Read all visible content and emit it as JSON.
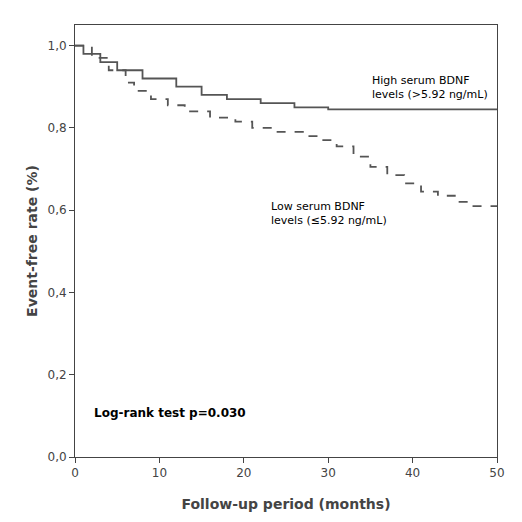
{
  "chart_data": {
    "type": "step",
    "title": "",
    "xlabel": "Follow-up period (months)",
    "ylabel": "Event-free rate (%)",
    "xlim": [
      0,
      50
    ],
    "ylim": [
      0.0,
      1.05
    ],
    "xticks": [
      0,
      10,
      20,
      30,
      40,
      50
    ],
    "yticks": [
      {
        "value": 0.0,
        "label": "0,0"
      },
      {
        "value": 0.2,
        "label": "0,2"
      },
      {
        "value": 0.4,
        "label": "0,4"
      },
      {
        "value": 0.6,
        "label": "0,6"
      },
      {
        "value": 0.8,
        "label": "0,8"
      },
      {
        "value": 1.0,
        "label": "1,0"
      }
    ],
    "grid": false,
    "background_color": "#ffffff",
    "annotations": [
      {
        "text": "Log-rank test p=0.030"
      },
      {
        "text": "High serum BDNF\nlevels (>5.92 ng/mL)"
      },
      {
        "text": "Low serum BDNF\nlevels (≤5.92 ng/mL)"
      }
    ],
    "series": [
      {
        "color": "#555555",
        "line_style": "solid",
        "x": [
          0,
          1,
          3,
          5,
          8,
          12,
          15,
          18,
          22,
          26,
          30,
          50
        ],
        "values": [
          1.0,
          0.98,
          0.96,
          0.94,
          0.92,
          0.9,
          0.88,
          0.87,
          0.86,
          0.85,
          0.845,
          0.845
        ]
      },
      {
        "color": "#555555",
        "line_style": "dashed",
        "x": [
          0,
          2,
          4,
          6,
          7,
          9,
          11,
          13,
          16,
          19,
          21,
          24,
          27,
          29,
          31,
          33,
          35,
          37,
          39,
          41,
          43,
          45,
          47,
          50
        ],
        "values": [
          1.0,
          0.97,
          0.94,
          0.91,
          0.89,
          0.87,
          0.855,
          0.84,
          0.825,
          0.815,
          0.8,
          0.79,
          0.78,
          0.77,
          0.755,
          0.73,
          0.705,
          0.685,
          0.665,
          0.645,
          0.635,
          0.62,
          0.61,
          0.61
        ]
      }
    ]
  }
}
